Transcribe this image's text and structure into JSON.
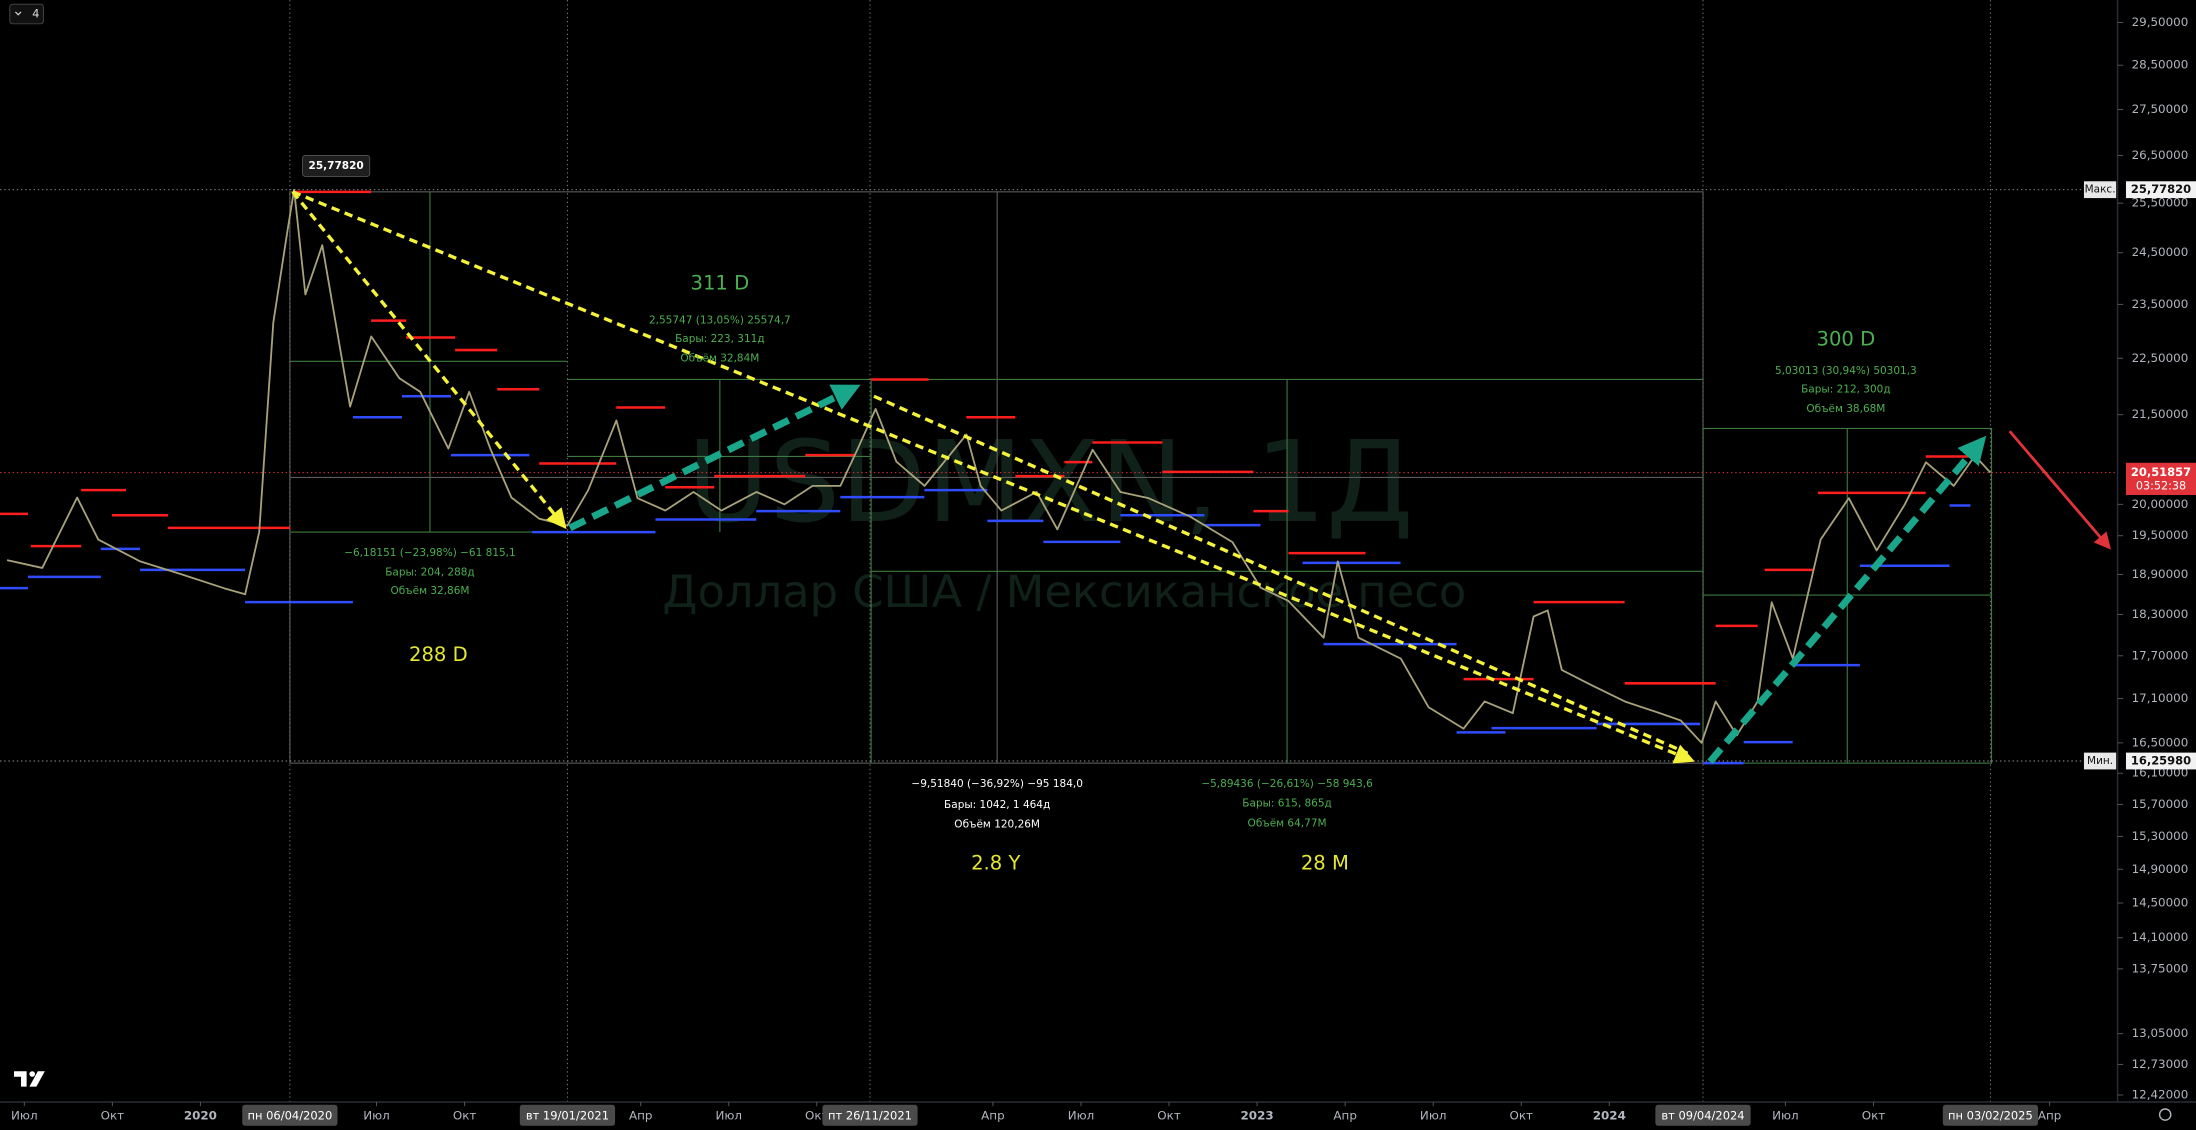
{
  "chart_data": {
    "type": "line",
    "interval": "4",
    "log_scale": true,
    "grid": false,
    "xlim": [
      2019.431,
      2025.443
    ],
    "ylim": [
      12.35,
      30.04
    ],
    "x": [
      2019.451,
      2019.551,
      2019.65,
      2019.71,
      2019.829,
      2019.948,
      2020.068,
      2020.127,
      2020.167,
      2020.207,
      2020.247,
      2020.266,
      2020.298,
      2020.346,
      2020.425,
      2020.485,
      2020.565,
      2020.624,
      2020.704,
      2020.763,
      2020.823,
      2020.883,
      2020.962,
      2021.042,
      2021.101,
      2021.181,
      2021.241,
      2021.32,
      2021.4,
      2021.479,
      2021.579,
      2021.658,
      2021.738,
      2021.817,
      2021.865,
      2021.917,
      2021.976,
      2022.056,
      2022.175,
      2022.215,
      2022.274,
      2022.374,
      2022.433,
      2022.533,
      2022.612,
      2022.692,
      2022.811,
      2022.93,
      2023.01,
      2023.089,
      2023.189,
      2023.229,
      2023.288,
      2023.408,
      2023.487,
      2023.586,
      2023.646,
      2023.726,
      2023.785,
      2023.825,
      2023.865,
      2023.944,
      2024.044,
      2024.143,
      2024.203,
      2024.262,
      2024.302,
      2024.362,
      2024.421,
      2024.461,
      2024.521,
      2024.6,
      2024.68,
      2024.759,
      2024.839,
      2024.899,
      2024.978,
      2025.038,
      2025.082
    ],
    "series": [
      {
        "color": "#a8a27a",
        "values": [
          19.12,
          19.0,
          20.11,
          19.44,
          19.1,
          18.9,
          18.69,
          18.6,
          19.56,
          23.16,
          24.93,
          25.7782,
          23.69,
          24.65,
          21.64,
          22.9,
          22.14,
          21.9,
          20.92,
          21.9,
          20.92,
          20.11,
          19.77,
          19.66,
          20.23,
          21.4,
          20.1,
          19.9,
          20.2,
          19.9,
          20.2,
          20.0,
          20.3,
          20.3,
          20.9,
          21.6,
          20.7,
          20.3,
          21.16,
          20.3,
          19.9,
          20.2,
          19.6,
          20.9,
          20.2,
          20.1,
          19.8,
          19.4,
          18.7,
          18.5,
          17.96,
          19.1,
          17.96,
          17.66,
          16.98,
          16.69,
          17.06,
          16.9,
          18.27,
          18.36,
          17.5,
          17.3,
          17.06,
          16.9,
          16.8,
          16.5,
          17.06,
          16.6,
          17.06,
          18.48,
          17.66,
          19.44,
          20.1,
          19.27,
          20.0,
          20.69,
          20.3,
          20.8,
          20.51857
        ]
      }
    ],
    "yticks": [
      {
        "value": 29.5,
        "label": "29,50000"
      },
      {
        "value": 28.5,
        "label": "28,50000"
      },
      {
        "value": 27.5,
        "label": "27,50000"
      },
      {
        "value": 26.5,
        "label": "26,50000"
      },
      {
        "value": 25.5,
        "label": "25,50000"
      },
      {
        "value": 24.5,
        "label": "24,50000"
      },
      {
        "value": 23.5,
        "label": "23,50000"
      },
      {
        "value": 22.5,
        "label": "22,50000"
      },
      {
        "value": 21.5,
        "label": "21,50000"
      },
      {
        "value": 20.0,
        "label": "20,00000"
      },
      {
        "value": 19.5,
        "label": "19,50000"
      },
      {
        "value": 18.9,
        "label": "18,90000"
      },
      {
        "value": 18.3,
        "label": "18,30000"
      },
      {
        "value": 17.7,
        "label": "17,70000"
      },
      {
        "value": 17.1,
        "label": "17,10000"
      },
      {
        "value": 16.5,
        "label": "16,50000"
      },
      {
        "value": 16.1,
        "label": "16,10000"
      },
      {
        "value": 15.7,
        "label": "15,70000"
      },
      {
        "value": 15.3,
        "label": "15,30000"
      },
      {
        "value": 14.9,
        "label": "14,90000"
      },
      {
        "value": 14.5,
        "label": "14,50000"
      },
      {
        "value": 14.1,
        "label": "14,10000"
      },
      {
        "value": 13.75,
        "label": "13,75000"
      },
      {
        "value": 13.05,
        "label": "13,05000"
      },
      {
        "value": 12.73,
        "label": "12,73000"
      },
      {
        "value": 12.42,
        "label": "12,42000"
      }
    ],
    "xticks": [
      {
        "value": 2019.5,
        "label": "Июл"
      },
      {
        "value": 2019.75,
        "label": "Окт"
      },
      2020,
      {
        "value": 2020.5,
        "label": "Июл"
      },
      {
        "value": 2020.75,
        "label": "Окт"
      },
      {
        "value": 2021.25,
        "label": "Апр"
      },
      {
        "value": 2021.5,
        "label": "Июл"
      },
      {
        "value": 2021.75,
        "label": "Окт"
      },
      {
        "value": 2022.25,
        "label": "Апр"
      },
      {
        "value": 2022.5,
        "label": "Июл"
      },
      {
        "value": 2022.75,
        "label": "Окт"
      },
      2023,
      {
        "value": 2023.25,
        "label": "Апр"
      },
      {
        "value": 2023.5,
        "label": "Июл"
      },
      {
        "value": 2023.75,
        "label": "Окт"
      },
      2024,
      {
        "value": 2024.5,
        "label": "Июл"
      },
      {
        "value": 2024.75,
        "label": "Окт"
      },
      {
        "value": 2025.25,
        "label": "Апр"
      }
    ],
    "date_markers": [
      {
        "value": 2020.254,
        "label": "пн 06/04/2020"
      },
      {
        "value": 2021.042,
        "label": "вт 19/01/2021"
      },
      {
        "value": 2021.901,
        "label": "пт 26/11/2021"
      },
      {
        "value": 2024.266,
        "label": "вт 09/04/2024"
      },
      {
        "value": 2025.082,
        "label": "пн 03/02/2025"
      }
    ],
    "markers": {
      "max": {
        "value": 25.7782,
        "label": "25,77820",
        "tag": "Макс."
      },
      "min": {
        "value": 16.2598,
        "label": "16,25980",
        "tag": "Мин."
      },
      "last": {
        "value": 20.51857,
        "label": "20,51857",
        "countdown": "03:52:38"
      }
    },
    "watermark": {
      "symbol": "USDMXN, 1Д",
      "description": "Доллар США / Мексиканское песо"
    },
    "measures": [
      {
        "duration": "288 D",
        "change": "−6,18151 (−23,98%) −61 815,1",
        "bars": "Бары: 204, 288д",
        "volume": "Объём 32,86M"
      },
      {
        "duration": "311 D",
        "change": "2,55747 (13,05%) 25574,7",
        "bars": "Бары: 223, 311д",
        "volume": "Объём 32,84M"
      },
      {
        "duration": "2.8 Y",
        "change": "−9,51840 (−36,92%) −95 184,0",
        "bars": "Бары: 1042, 1 464д",
        "volume": "Объём 120,26M"
      },
      {
        "duration": "28 M",
        "change": "−5,89436 (−26,61%) −58 943,6",
        "bars": "Бары: 615, 865д",
        "volume": "Объём 64,77M"
      },
      {
        "duration": "300 D",
        "change": "5,03013 (30,94%) 50301,3",
        "bars": "Бары: 212, 300д",
        "volume": "Объём 38,68M"
      }
    ]
  }
}
